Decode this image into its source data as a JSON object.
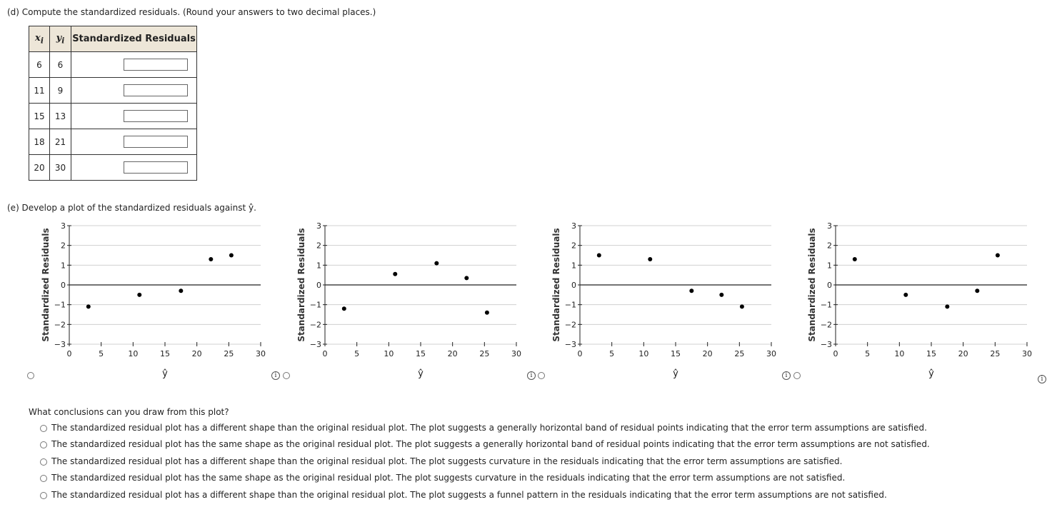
{
  "part_d": {
    "prompt": "(d) Compute the standardized residuals. (Round your answers to two decimal places.)",
    "col_x": "x",
    "col_x_sub": "i",
    "col_y": "y",
    "col_y_sub": "i",
    "col_res": "Standardized Residuals",
    "rows": [
      {
        "x": "6",
        "y": "6"
      },
      {
        "x": "11",
        "y": "9"
      },
      {
        "x": "15",
        "y": "13"
      },
      {
        "x": "18",
        "y": "21"
      },
      {
        "x": "20",
        "y": "30"
      }
    ]
  },
  "part_e": {
    "prompt": "(e) Develop a plot of the standardized residuals against ŷ.",
    "info_glyph": "i"
  },
  "chart_data": [
    {
      "type": "scatter",
      "xlabel": "ŷ",
      "ylabel": "Standardized Residuals",
      "xlim": [
        0,
        30
      ],
      "ylim": [
        -3,
        3
      ],
      "xticks": [
        0,
        5,
        10,
        15,
        20,
        25,
        30
      ],
      "yticks": [
        3,
        2,
        1,
        0,
        -1,
        -2,
        -3
      ],
      "points": [
        [
          3,
          -1.1
        ],
        [
          11,
          -0.5
        ],
        [
          17.5,
          -0.3
        ],
        [
          22.2,
          1.3
        ],
        [
          25.4,
          1.5
        ]
      ]
    },
    {
      "type": "scatter",
      "xlabel": "ŷ",
      "ylabel": "Standardized Residuals",
      "xlim": [
        0,
        30
      ],
      "ylim": [
        -3,
        3
      ],
      "xticks": [
        0,
        5,
        10,
        15,
        20,
        25,
        30
      ],
      "yticks": [
        3,
        2,
        1,
        0,
        -1,
        -2,
        -3
      ],
      "points": [
        [
          3,
          -1.2
        ],
        [
          11,
          0.55
        ],
        [
          17.5,
          1.1
        ],
        [
          22.2,
          0.35
        ],
        [
          25.4,
          -1.4
        ]
      ]
    },
    {
      "type": "scatter",
      "xlabel": "ŷ",
      "ylabel": "Standardized Residuals",
      "xlim": [
        0,
        30
      ],
      "ylim": [
        -3,
        3
      ],
      "xticks": [
        0,
        5,
        10,
        15,
        20,
        25,
        30
      ],
      "yticks": [
        3,
        2,
        1,
        0,
        -1,
        -2,
        -3
      ],
      "points": [
        [
          3,
          1.5
        ],
        [
          11,
          1.3
        ],
        [
          17.5,
          -0.3
        ],
        [
          22.2,
          -0.5
        ],
        [
          25.4,
          -1.1
        ]
      ]
    },
    {
      "type": "scatter",
      "xlabel": "ŷ",
      "ylabel": "Standardized Residuals",
      "xlim": [
        0,
        30
      ],
      "ylim": [
        -3,
        3
      ],
      "xticks": [
        0,
        5,
        10,
        15,
        20,
        25,
        30
      ],
      "yticks": [
        3,
        2,
        1,
        0,
        -1,
        -2,
        -3
      ],
      "points": [
        [
          3,
          1.3
        ],
        [
          11,
          -0.5
        ],
        [
          17.5,
          -1.1
        ],
        [
          22.2,
          -0.3
        ],
        [
          25.4,
          1.5
        ]
      ]
    }
  ],
  "conclusions": {
    "question": "What conclusions can you draw from this plot?",
    "options": [
      "The standardized residual plot has a different shape than the original residual plot. The plot suggests a generally horizontal band of residual points indicating that the error term assumptions are satisfied.",
      "The standardized residual plot has the same shape as the original residual plot. The plot suggests a generally horizontal band of residual points indicating that the error term assumptions are not satisfied.",
      "The standardized residual plot has a different shape than the original residual plot. The plot suggests curvature in the residuals indicating that the error term assumptions are satisfied.",
      "The standardized residual plot has the same shape as the original residual plot. The plot suggests curvature in the residuals indicating that the error term assumptions are not satisfied.",
      "The standardized residual plot has a different shape than the original residual plot. The plot suggests a funnel pattern in the residuals indicating that the error term assumptions are not satisfied."
    ]
  }
}
